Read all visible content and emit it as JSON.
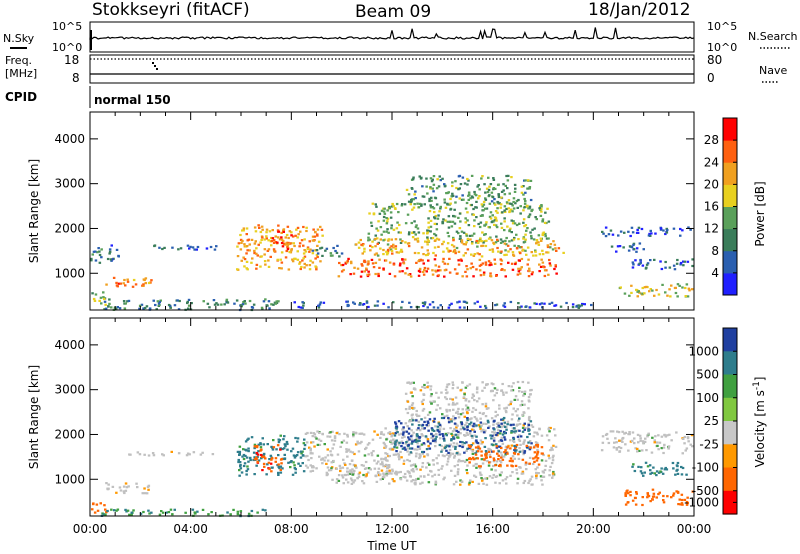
{
  "header": {
    "station": "Stokkseyri (fitACF)",
    "beam": "Beam 09",
    "date": "18/Jan/2012"
  },
  "aux_panels": {
    "sky_label": "N.Sky",
    "search_label": "N.Search",
    "sky_tick_top": "10^5",
    "sky_tick_bottom": "10^0",
    "freq_label": "Freq.",
    "freq_unit": "[MHz]",
    "freq_ticks": [
      "18",
      "8"
    ],
    "nave_label": "Nave",
    "nave_ticks": [
      "80",
      "0"
    ],
    "cpid_label": "CPID",
    "cpid_value": "normal 150"
  },
  "colors": {
    "power_scale": [
      "#2020ff",
      "#2a5fb0",
      "#3a7d5a",
      "#5aa05a",
      "#e8d020",
      "#f0a020",
      "#ff6010",
      "#ff0000"
    ],
    "velocity_scale": [
      "#2040a0",
      "#2e7d8c",
      "#40a040",
      "#80c840",
      "#c8c8c8",
      "#ff9900",
      "#ff6600",
      "#ff0000"
    ],
    "velocity_gray": "#c0c0c0"
  },
  "chart_data": [
    {
      "type": "heatmap",
      "name": "power",
      "ylabel": "Slant Range [km]",
      "xlabel": "",
      "ylim": [
        180,
        4600
      ],
      "yticks": [
        "1000",
        "2000",
        "3000",
        "4000"
      ],
      "xticks": [
        "00:00",
        "04:00",
        "08:00",
        "12:00",
        "16:00",
        "20:00",
        "00:00"
      ],
      "colorbar_label": "Power [dB]",
      "colorbar_ticks": [
        "4",
        "8",
        "12",
        "16",
        "20",
        "24",
        "28"
      ],
      "colorbar_range": [
        0,
        32
      ],
      "regions": [
        {
          "t": [
            0.6,
            2.4
          ],
          "r": [
            700,
            950
          ],
          "p": 24
        },
        {
          "t": [
            0.0,
            0.6
          ],
          "r": [
            250,
            600
          ],
          "p": 16
        },
        {
          "t": [
            0.0,
            0.5
          ],
          "r": [
            1200,
            1650
          ],
          "p": 8
        },
        {
          "t": [
            0.6,
            1.2
          ],
          "r": [
            1300,
            1650
          ],
          "p": 6
        },
        {
          "t": [
            1.5,
            5.0
          ],
          "r": [
            1550,
            1650
          ],
          "p": 6
        },
        {
          "t": [
            0.5,
            7.5
          ],
          "r": [
            200,
            450
          ],
          "p": 10
        },
        {
          "t": [
            5.8,
            9.2
          ],
          "r": [
            1100,
            2100
          ],
          "p": 22
        },
        {
          "t": [
            7.2,
            8.0
          ],
          "r": [
            1500,
            2000
          ],
          "p": 28
        },
        {
          "t": [
            8.8,
            10.0
          ],
          "r": [
            1400,
            1650
          ],
          "p": 8
        },
        {
          "t": [
            9.8,
            18.5
          ],
          "r": [
            950,
            1350
          ],
          "p": 26
        },
        {
          "t": [
            11.0,
            18.2
          ],
          "r": [
            1700,
            2600
          ],
          "p": 14
        },
        {
          "t": [
            10.5,
            18.8
          ],
          "r": [
            1400,
            1800
          ],
          "p": 20
        },
        {
          "t": [
            12.5,
            17.5
          ],
          "r": [
            2600,
            3200
          ],
          "p": 12
        },
        {
          "t": [
            20.5,
            22.0
          ],
          "r": [
            1500,
            1700
          ],
          "p": 6
        },
        {
          "t": [
            21.0,
            23.9
          ],
          "r": [
            500,
            800
          ],
          "p": 18
        },
        {
          "t": [
            21.5,
            23.9
          ],
          "r": [
            1100,
            1350
          ],
          "p": 6
        },
        {
          "t": [
            20.3,
            23.9
          ],
          "r": [
            1850,
            2050
          ],
          "p": 6
        },
        {
          "t": [
            8.0,
            20.0
          ],
          "r": [
            250,
            400
          ],
          "p": 6
        }
      ]
    },
    {
      "type": "heatmap",
      "name": "velocity",
      "ylabel": "Slant Range [km]",
      "xlabel": "Time UT",
      "ylim": [
        180,
        4600
      ],
      "yticks": [
        "1000",
        "2000",
        "3000",
        "4000"
      ],
      "xticks": [
        "00:00",
        "04:00",
        "08:00",
        "12:00",
        "16:00",
        "20:00",
        "00:00"
      ],
      "colorbar_label": "Velocity [m s",
      "colorbar_label_sup": "-1",
      "colorbar_label_end": "]",
      "colorbar_ticks": [
        "1000",
        "500",
        "100",
        "25",
        "-25",
        "-100",
        "-500",
        "-1000"
      ],
      "regions": [
        {
          "t": [
            0.6,
            2.4
          ],
          "r": [
            700,
            950
          ],
          "v": -10
        },
        {
          "t": [
            0.0,
            0.6
          ],
          "r": [
            250,
            550
          ],
          "v": -300
        },
        {
          "t": [
            0.3,
            7.0
          ],
          "r": [
            200,
            350
          ],
          "v": 80
        },
        {
          "t": [
            1.5,
            5.0
          ],
          "r": [
            1550,
            1650
          ],
          "v": -10
        },
        {
          "t": [
            5.8,
            8.5
          ],
          "r": [
            1100,
            2000
          ],
          "v": 200
        },
        {
          "t": [
            6.5,
            7.6
          ],
          "r": [
            1200,
            1800
          ],
          "v": -400
        },
        {
          "t": [
            8.5,
            12.0
          ],
          "r": [
            1100,
            2100
          ],
          "v": 0
        },
        {
          "t": [
            9.5,
            18.5
          ],
          "r": [
            900,
            1300
          ],
          "v": 0
        },
        {
          "t": [
            11.5,
            18.5
          ],
          "r": [
            1300,
            2200
          ],
          "v": 0
        },
        {
          "t": [
            12.5,
            17.5
          ],
          "r": [
            2200,
            3200
          ],
          "v": 0
        },
        {
          "t": [
            12.0,
            17.5
          ],
          "r": [
            1600,
            2400
          ],
          "v": 500
        },
        {
          "t": [
            15.0,
            18.0
          ],
          "r": [
            1300,
            1800
          ],
          "v": -300
        },
        {
          "t": [
            21.0,
            23.9
          ],
          "r": [
            450,
            800
          ],
          "v": -300
        },
        {
          "t": [
            20.3,
            23.9
          ],
          "r": [
            1600,
            2100
          ],
          "v": 0
        },
        {
          "t": [
            21.5,
            23.9
          ],
          "r": [
            1100,
            1400
          ],
          "v": 200
        }
      ]
    }
  ]
}
